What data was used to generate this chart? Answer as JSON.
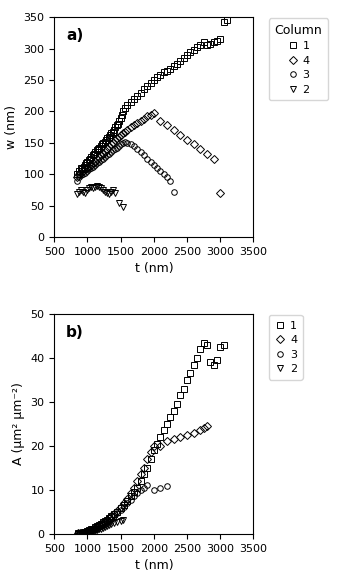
{
  "title_a": "a)",
  "title_b": "b)",
  "xlabel": "t (nm)",
  "ylabel_a": "w (nm)",
  "ylabel_b": "A (μm² μm⁻²)",
  "xlim": [
    500,
    3500
  ],
  "ylim_a": [
    0,
    350
  ],
  "ylim_b": [
    0,
    50
  ],
  "xticks": [
    500,
    1000,
    1500,
    2000,
    2500,
    3000,
    3500
  ],
  "yticks_a": [
    0,
    50,
    100,
    150,
    200,
    250,
    300,
    350
  ],
  "yticks_b": [
    0,
    10,
    20,
    30,
    40,
    50
  ],
  "legend_title": "Column",
  "legend_labels": [
    "1",
    "4",
    "3",
    "2"
  ],
  "markers": [
    "s",
    "D",
    "o",
    "v"
  ],
  "marker_size": 4,
  "col1_w_t": [
    840,
    870,
    900,
    920,
    940,
    960,
    980,
    1000,
    1020,
    1040,
    1060,
    1080,
    1100,
    1120,
    1140,
    1160,
    1180,
    1200,
    1220,
    1240,
    1260,
    1280,
    1300,
    1320,
    1340,
    1360,
    1380,
    1400,
    1420,
    1440,
    1460,
    1480,
    1500,
    1520,
    1540,
    1560,
    1600,
    1650,
    1700,
    1750,
    1800,
    1850,
    1900,
    1950,
    2000,
    2050,
    2100,
    2150,
    2200,
    2250,
    2300,
    2350,
    2400,
    2450,
    2500,
    2550,
    2600,
    2650,
    2700,
    2750,
    2800,
    2850,
    2900,
    2950,
    3000,
    3050,
    3100
  ],
  "col1_w_w": [
    100,
    105,
    110,
    108,
    112,
    115,
    118,
    120,
    122,
    125,
    128,
    130,
    132,
    135,
    138,
    140,
    142,
    145,
    148,
    150,
    152,
    155,
    158,
    160,
    162,
    165,
    168,
    170,
    175,
    178,
    180,
    185,
    190,
    195,
    200,
    205,
    210,
    215,
    220,
    225,
    230,
    235,
    240,
    245,
    250,
    255,
    258,
    262,
    265,
    268,
    272,
    276,
    280,
    285,
    290,
    294,
    298,
    302,
    306,
    310,
    305,
    308,
    310,
    312,
    315,
    342,
    345
  ],
  "col4_w_t": [
    840,
    870,
    900,
    930,
    960,
    990,
    1020,
    1050,
    1080,
    1110,
    1140,
    1170,
    1200,
    1230,
    1260,
    1290,
    1320,
    1350,
    1380,
    1410,
    1440,
    1470,
    1500,
    1530,
    1560,
    1600,
    1650,
    1700,
    1750,
    1800,
    1850,
    1900,
    1950,
    2000,
    2100,
    2200,
    2300,
    2400,
    2500,
    2600,
    2700,
    2800,
    2900,
    3000
  ],
  "col4_w_w": [
    95,
    100,
    102,
    105,
    108,
    110,
    112,
    115,
    118,
    120,
    125,
    128,
    130,
    132,
    135,
    140,
    145,
    148,
    150,
    155,
    158,
    160,
    162,
    165,
    168,
    170,
    175,
    178,
    182,
    185,
    188,
    192,
    195,
    198,
    185,
    178,
    170,
    162,
    155,
    148,
    140,
    132,
    125,
    70
  ],
  "col3_w_t": [
    840,
    870,
    900,
    930,
    960,
    990,
    1020,
    1050,
    1080,
    1110,
    1140,
    1170,
    1200,
    1230,
    1260,
    1290,
    1320,
    1350,
    1380,
    1410,
    1440,
    1470,
    1500,
    1530,
    1560,
    1600,
    1650,
    1700,
    1750,
    1800,
    1850,
    1900,
    1950,
    2000,
    2050,
    2100,
    2150,
    2200,
    2250,
    2300
  ],
  "col3_w_w": [
    90,
    95,
    98,
    100,
    102,
    105,
    108,
    110,
    112,
    115,
    118,
    120,
    122,
    125,
    128,
    130,
    132,
    135,
    138,
    140,
    142,
    145,
    148,
    150,
    152,
    150,
    148,
    145,
    140,
    135,
    130,
    125,
    120,
    115,
    110,
    105,
    100,
    95,
    90,
    72
  ],
  "col2_w_t": [
    840,
    870,
    900,
    930,
    960,
    990,
    1020,
    1050,
    1080,
    1110,
    1140,
    1170,
    1200,
    1230,
    1260,
    1290,
    1320,
    1350,
    1380,
    1420,
    1480,
    1530
  ],
  "col2_w_w": [
    68,
    72,
    75,
    72,
    70,
    75,
    78,
    80,
    78,
    80,
    82,
    80,
    78,
    75,
    72,
    70,
    68,
    72,
    75,
    70,
    55,
    48
  ],
  "col1_a_t": [
    850,
    880,
    910,
    940,
    970,
    1000,
    1030,
    1060,
    1090,
    1120,
    1150,
    1180,
    1210,
    1240,
    1270,
    1300,
    1330,
    1360,
    1400,
    1450,
    1500,
    1550,
    1600,
    1650,
    1700,
    1750,
    1800,
    1850,
    1900,
    1950,
    2000,
    2050,
    2100,
    2150,
    2200,
    2250,
    2300,
    2350,
    2400,
    2450,
    2500,
    2550,
    2600,
    2650,
    2700,
    2750,
    2800,
    2850,
    2900,
    2950,
    3000,
    3050
  ],
  "col1_a_a": [
    0.1,
    0.2,
    0.3,
    0.4,
    0.5,
    0.6,
    0.8,
    1.0,
    1.2,
    1.5,
    1.8,
    2.0,
    2.3,
    2.6,
    2.9,
    3.2,
    3.6,
    4.0,
    4.5,
    5.0,
    5.8,
    6.5,
    7.5,
    8.5,
    9.5,
    10.5,
    12.0,
    13.5,
    15.0,
    17.0,
    19.0,
    20.5,
    22.0,
    23.5,
    25.0,
    26.5,
    28.0,
    29.5,
    31.5,
    33.0,
    35.0,
    36.5,
    38.5,
    40.0,
    42.0,
    43.5,
    43.0,
    39.0,
    38.5,
    39.5,
    42.5,
    43.0
  ],
  "col4_a_t": [
    850,
    880,
    910,
    940,
    970,
    1000,
    1030,
    1060,
    1090,
    1120,
    1150,
    1180,
    1210,
    1240,
    1270,
    1300,
    1330,
    1360,
    1400,
    1450,
    1500,
    1550,
    1600,
    1650,
    1700,
    1750,
    1800,
    1850,
    1900,
    1950,
    2000,
    2100,
    2200,
    2300,
    2400,
    2500,
    2600,
    2700,
    2750,
    2800
  ],
  "col4_a_a": [
    0.1,
    0.15,
    0.2,
    0.3,
    0.4,
    0.5,
    0.7,
    0.9,
    1.1,
    1.3,
    1.6,
    1.9,
    2.2,
    2.5,
    2.8,
    3.2,
    3.6,
    4.0,
    4.6,
    5.3,
    6.0,
    7.0,
    8.0,
    9.2,
    10.5,
    12.0,
    13.5,
    15.0,
    17.0,
    18.5,
    20.0,
    20.0,
    21.0,
    21.5,
    22.0,
    22.5,
    23.0,
    23.5,
    24.0,
    24.5
  ],
  "col3_a_t": [
    850,
    880,
    910,
    940,
    970,
    1000,
    1030,
    1060,
    1090,
    1120,
    1150,
    1180,
    1210,
    1240,
    1270,
    1300,
    1330,
    1360,
    1400,
    1450,
    1500,
    1550,
    1600,
    1650,
    1700,
    1750,
    1800,
    1850,
    1900,
    2000,
    2100,
    2200
  ],
  "col3_a_a": [
    0.1,
    0.15,
    0.2,
    0.25,
    0.3,
    0.4,
    0.5,
    0.6,
    0.8,
    1.0,
    1.2,
    1.5,
    1.8,
    2.0,
    2.3,
    2.6,
    3.0,
    3.4,
    4.0,
    4.8,
    5.5,
    6.2,
    7.0,
    7.8,
    8.5,
    9.2,
    10.0,
    10.5,
    11.0,
    10.0,
    10.5,
    10.8
  ],
  "col2_a_t": [
    850,
    880,
    910,
    940,
    970,
    1000,
    1030,
    1060,
    1090,
    1120,
    1150,
    1180,
    1210,
    1240,
    1270,
    1300,
    1330,
    1360,
    1400,
    1450,
    1500,
    1530
  ],
  "col2_a_a": [
    0.05,
    0.1,
    0.15,
    0.2,
    0.25,
    0.3,
    0.4,
    0.5,
    0.6,
    0.7,
    0.9,
    1.0,
    1.2,
    1.4,
    1.6,
    1.8,
    2.0,
    2.2,
    2.5,
    2.8,
    3.0,
    3.1
  ],
  "marker_facecolor": "none",
  "marker_edgecolor": "black",
  "background_color": "#ffffff",
  "fig_width": 3.62,
  "fig_height": 5.74,
  "dpi": 100
}
